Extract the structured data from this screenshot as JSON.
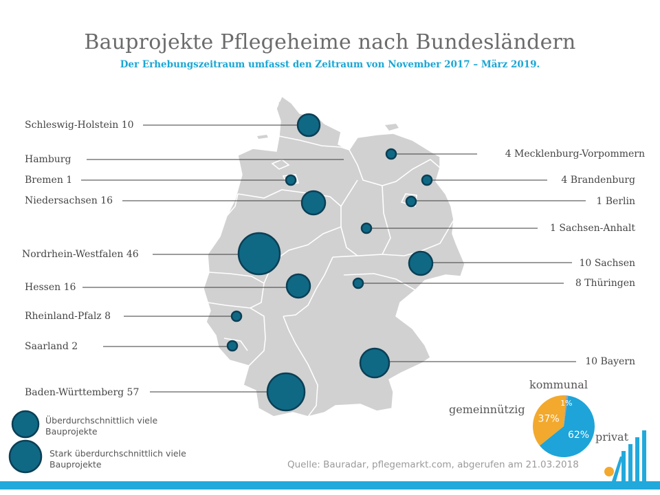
{
  "title": "Bauprojekte Pflegeheime nach Bundesländern",
  "subtitle": "Der Erhebungszeitraum umfasst den Zeitraum von November 2017 – März 2019.",
  "states_left": [
    {
      "label": "Schleswig-Holstein 10"
    },
    {
      "label": "Hamburg"
    },
    {
      "label": "Bremen 1"
    },
    {
      "label": "Niedersachsen 16"
    },
    {
      "label": "Nordrhein-Westfalen 46"
    },
    {
      "label": "Hessen 16"
    },
    {
      "label": "Rheinland-Pfalz 8"
    },
    {
      "label": "Saarland 2"
    },
    {
      "label": "Baden-Württemberg 57"
    }
  ],
  "states_right": [
    {
      "label": "4 Mecklenburg-Vorpommern"
    },
    {
      "label": "4 Brandenburg"
    },
    {
      "label": "1 Berlin"
    },
    {
      "label": "1 Sachsen-Anhalt"
    },
    {
      "label": "10 Sachsen"
    },
    {
      "label": "8 Thüringen"
    },
    {
      "label": "10 Bayern"
    }
  ],
  "legend": {
    "item1": "Überdurchschnittlich viele Bauprojekte",
    "item2": "Stark überdurchschnittlich viele Bauprojekte"
  },
  "pie": {
    "labels": {
      "kommunal": "kommunal",
      "gemeinnuetzig": "gemeinnützig",
      "privat": "privat"
    },
    "slices": [
      {
        "name": "privat",
        "value": 62,
        "text": "62%",
        "color": "#1ea4d8"
      },
      {
        "name": "gemeinnützig",
        "value": 37,
        "text": "37%",
        "color": "#f2a92e"
      },
      {
        "name": "kommunal",
        "value": 1,
        "text": "1%",
        "color": "#9e9e9e"
      }
    ]
  },
  "colors": {
    "bubble": "#0f6985",
    "bubble_stroke": "#0b3f55",
    "land": "#d1d1d1",
    "accent": "#21a9dc"
  },
  "source": "Quelle: Bauradar, pflegemarkt.com, abgerufen am 21.03.2018"
}
